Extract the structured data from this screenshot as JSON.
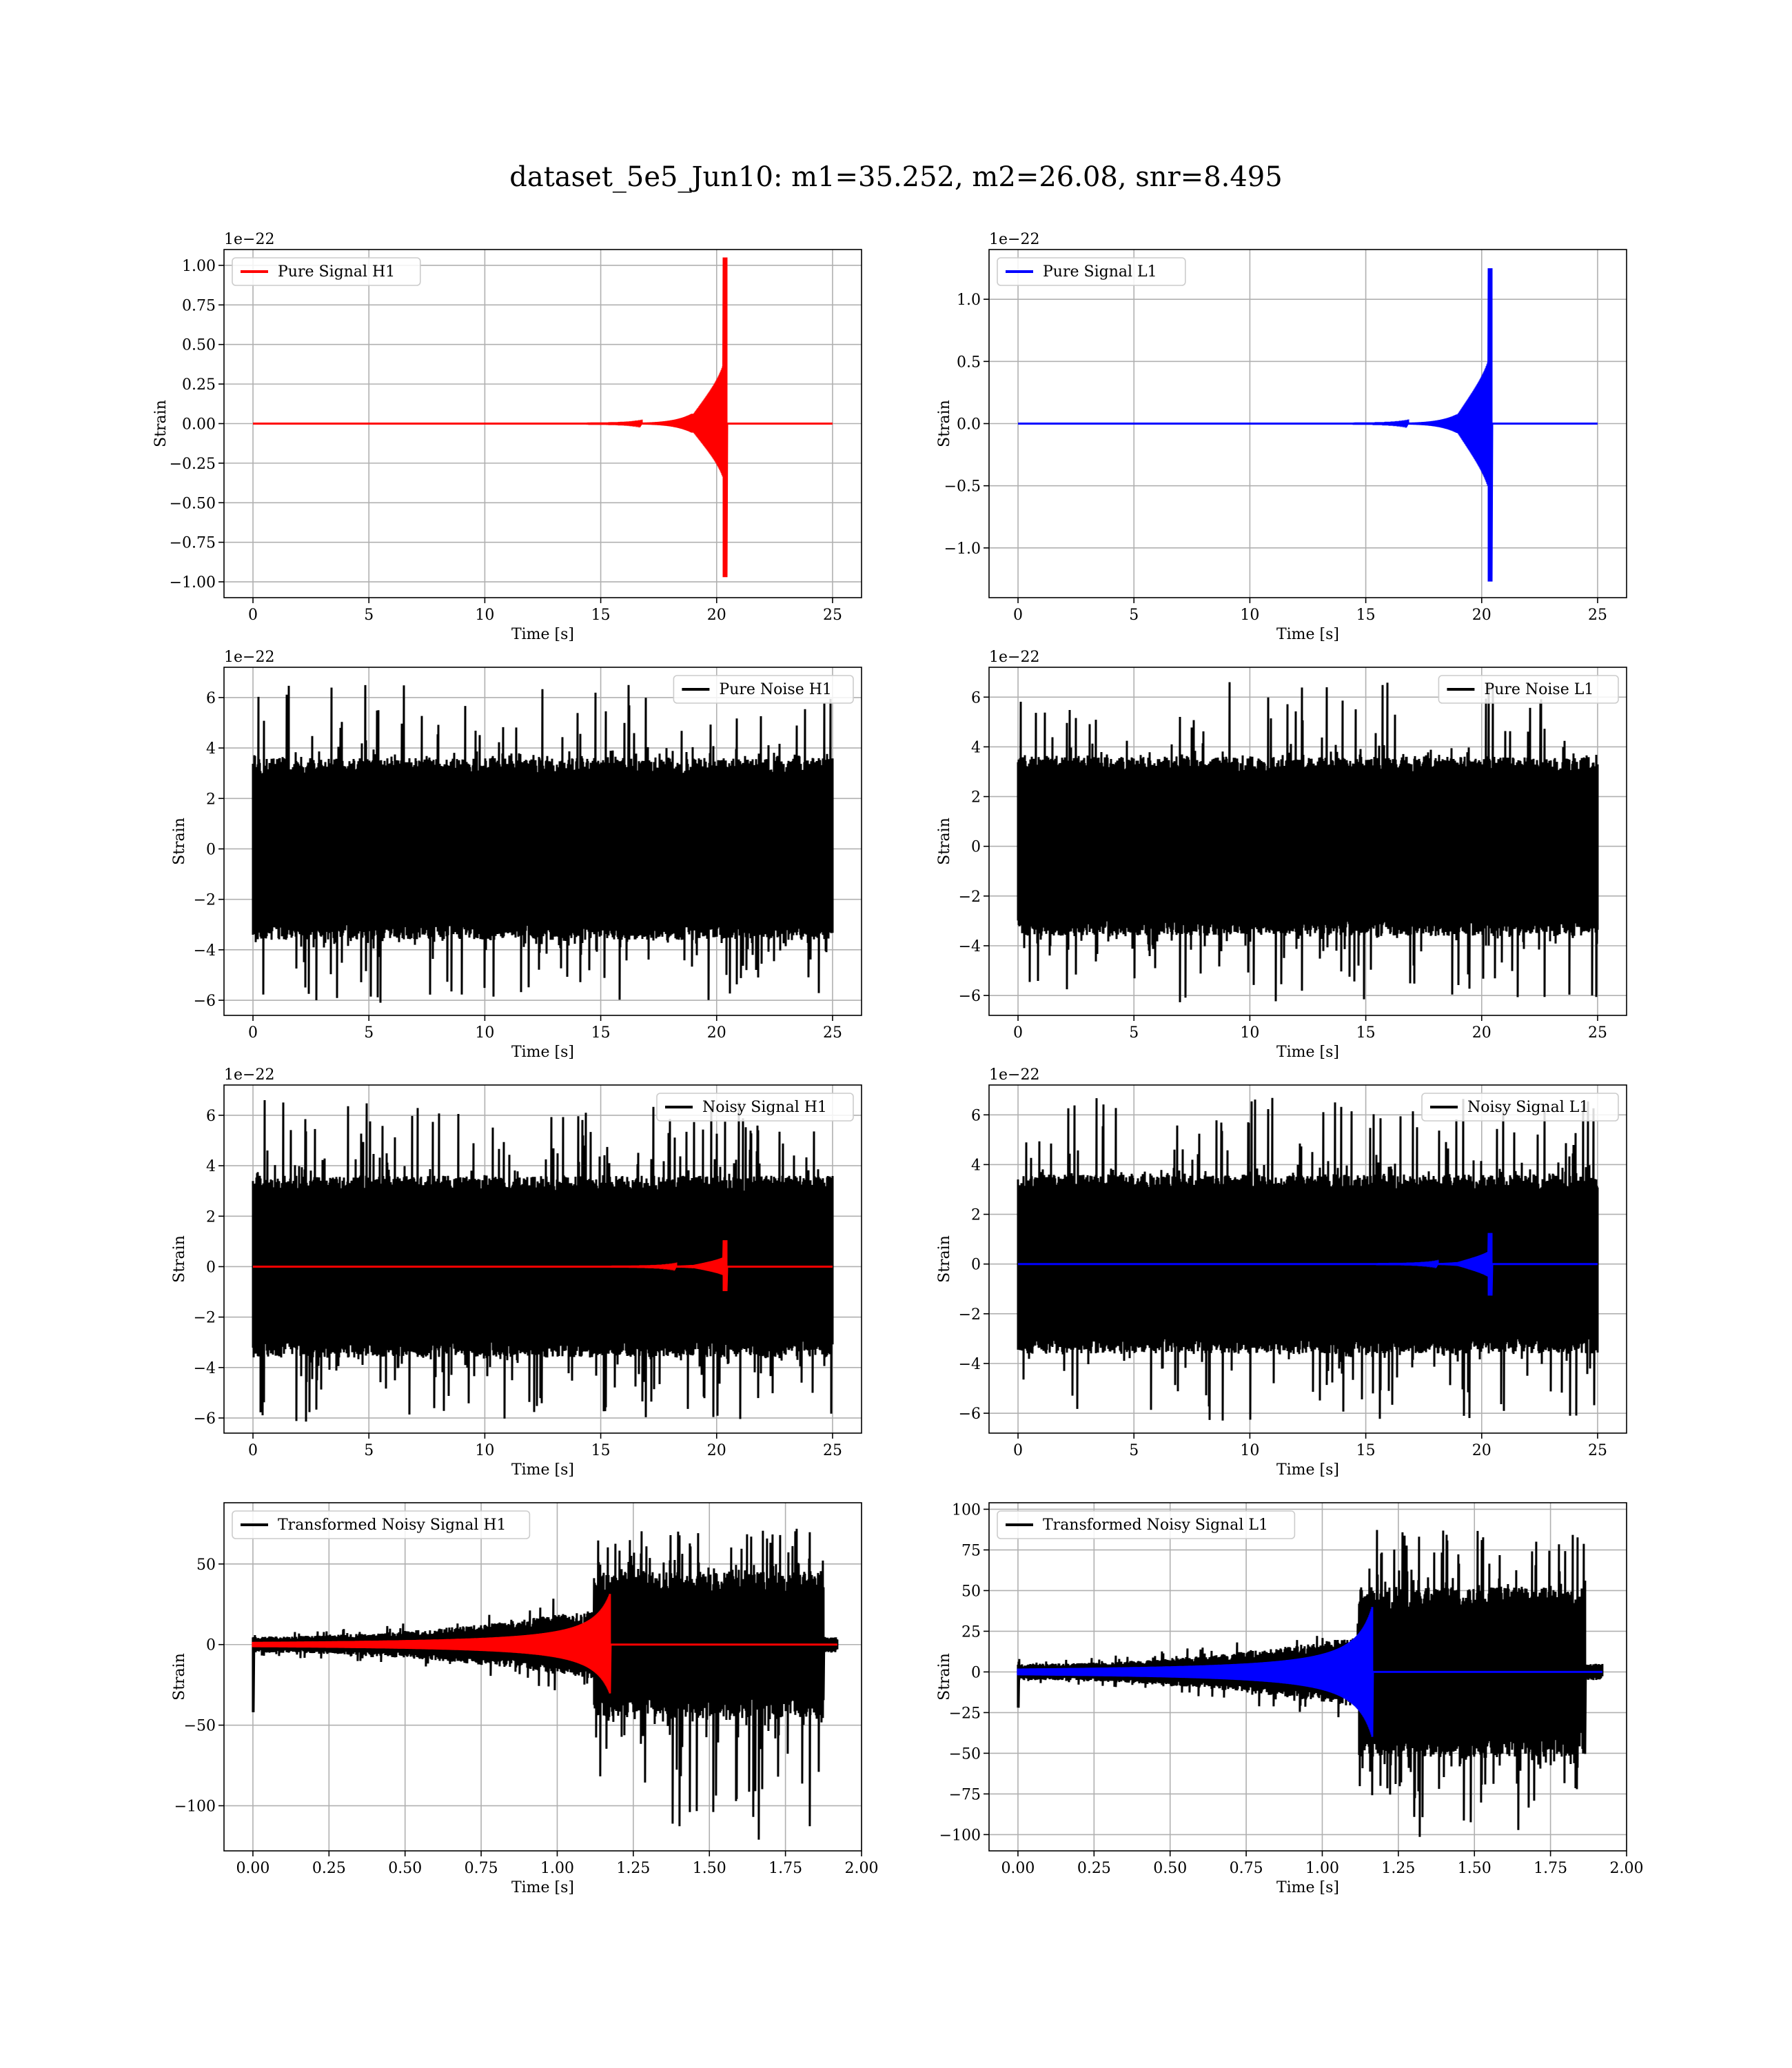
{
  "figure": {
    "title": "dataset_5e5_Jun10: m1=35.252, m2=26.08, snr=8.495"
  },
  "chart_data": [
    {
      "type": "line",
      "legend": "Pure Signal H1",
      "legend_loc": "upper-left",
      "offset_label": "1e−22",
      "xlabel": "Time [s]",
      "ylabel": "Strain",
      "xlim": [
        -1.25,
        26.25
      ],
      "ylim": [
        -1.1,
        1.1
      ],
      "xticks": [
        0,
        5,
        10,
        15,
        20,
        25
      ],
      "yticks": [
        -1.0,
        -0.75,
        -0.5,
        -0.25,
        0.0,
        0.25,
        0.5,
        0.75,
        1.0
      ],
      "ytick_labels": [
        "−1.00",
        "−0.75",
        "−0.50",
        "−0.25",
        "0.00",
        "0.25",
        "0.50",
        "0.75",
        "1.00"
      ],
      "grid": true,
      "series": [
        {
          "name": "Pure Signal H1",
          "color": "#ff0000",
          "kind": "chirp",
          "x_start": 0,
          "x_end": 25,
          "merger": 20.45,
          "peak_pos": 1.05,
          "peak_neg": -0.97,
          "pre_amp": 0.3
        }
      ]
    },
    {
      "type": "line",
      "legend": "Pure Signal L1",
      "legend_loc": "upper-left",
      "offset_label": "1e−22",
      "xlabel": "Time [s]",
      "ylabel": "Strain",
      "xlim": [
        -1.25,
        26.25
      ],
      "ylim": [
        -1.4,
        1.4
      ],
      "xticks": [
        0,
        5,
        10,
        15,
        20,
        25
      ],
      "yticks": [
        -1.0,
        -0.5,
        0.0,
        0.5,
        1.0
      ],
      "ytick_labels": [
        "−1.0",
        "−0.5",
        "0.0",
        "0.5",
        "1.0"
      ],
      "grid": true,
      "series": [
        {
          "name": "Pure Signal L1",
          "color": "#0000ff",
          "kind": "chirp",
          "x_start": 0,
          "x_end": 25,
          "merger": 20.45,
          "peak_pos": 1.25,
          "peak_neg": -1.27,
          "pre_amp": 0.35
        }
      ]
    },
    {
      "type": "line",
      "legend": "Pure Noise H1",
      "legend_loc": "upper-right",
      "offset_label": "1e−22",
      "xlabel": "Time [s]",
      "ylabel": "Strain",
      "xlim": [
        -1.25,
        26.25
      ],
      "ylim": [
        -6.6,
        7.2
      ],
      "xticks": [
        0,
        5,
        10,
        15,
        20,
        25
      ],
      "yticks": [
        -6,
        -4,
        -2,
        0,
        2,
        4,
        6
      ],
      "ytick_labels": [
        "−6",
        "−4",
        "−2",
        "0",
        "2",
        "4",
        "6"
      ],
      "grid": true,
      "series": [
        {
          "name": "Pure Noise H1",
          "color": "#000000",
          "kind": "noise",
          "x_start": 0,
          "x_end": 25,
          "band": 3.6,
          "spike_max": 6.6,
          "spike_min": -6.1
        }
      ]
    },
    {
      "type": "line",
      "legend": "Pure Noise L1",
      "legend_loc": "upper-right",
      "offset_label": "1e−22",
      "xlabel": "Time [s]",
      "ylabel": "Strain",
      "xlim": [
        -1.25,
        26.25
      ],
      "ylim": [
        -6.8,
        7.2
      ],
      "xticks": [
        0,
        5,
        10,
        15,
        20,
        25
      ],
      "yticks": [
        -6,
        -4,
        -2,
        0,
        2,
        4,
        6
      ],
      "ytick_labels": [
        "−6",
        "−4",
        "−2",
        "0",
        "2",
        "4",
        "6"
      ],
      "grid": true,
      "series": [
        {
          "name": "Pure Noise L1",
          "color": "#000000",
          "kind": "noise",
          "x_start": 0,
          "x_end": 25,
          "band": 3.6,
          "spike_max": 6.7,
          "spike_min": -6.3
        }
      ]
    },
    {
      "type": "line",
      "legend": "Noisy Signal H1",
      "legend_loc": "upper-right",
      "offset_label": "1e−22",
      "xlabel": "Time [s]",
      "ylabel": "Strain",
      "xlim": [
        -1.25,
        26.25
      ],
      "ylim": [
        -6.6,
        7.2
      ],
      "xticks": [
        0,
        5,
        10,
        15,
        20,
        25
      ],
      "yticks": [
        -6,
        -4,
        -2,
        0,
        2,
        4,
        6
      ],
      "ytick_labels": [
        "−6",
        "−4",
        "−2",
        "0",
        "2",
        "4",
        "6"
      ],
      "grid": true,
      "series": [
        {
          "name": "Noisy Signal H1",
          "color": "#000000",
          "kind": "noise",
          "x_start": 0,
          "x_end": 25,
          "band": 3.6,
          "spike_max": 6.6,
          "spike_min": -6.2
        },
        {
          "name": "",
          "color": "#ff0000",
          "kind": "chirp",
          "x_start": 0,
          "x_end": 25,
          "merger": 20.45,
          "peak_pos": 1.05,
          "peak_neg": -0.97,
          "pre_amp": 0.3
        }
      ]
    },
    {
      "type": "line",
      "legend": "Noisy Signal L1",
      "legend_loc": "upper-right",
      "offset_label": "1e−22",
      "xlabel": "Time [s]",
      "ylabel": "Strain",
      "xlim": [
        -1.25,
        26.25
      ],
      "ylim": [
        -6.8,
        7.2
      ],
      "xticks": [
        0,
        5,
        10,
        15,
        20,
        25
      ],
      "yticks": [
        -6,
        -4,
        -2,
        0,
        2,
        4,
        6
      ],
      "ytick_labels": [
        "−6",
        "−4",
        "−2",
        "0",
        "2",
        "4",
        "6"
      ],
      "grid": true,
      "series": [
        {
          "name": "Noisy Signal L1",
          "color": "#000000",
          "kind": "noise",
          "x_start": 0,
          "x_end": 25,
          "band": 3.6,
          "spike_max": 6.7,
          "spike_min": -6.3
        },
        {
          "name": "",
          "color": "#0000ff",
          "kind": "chirp",
          "x_start": 0,
          "x_end": 25,
          "merger": 20.45,
          "peak_pos": 1.25,
          "peak_neg": -1.27,
          "pre_amp": 0.35
        }
      ]
    },
    {
      "type": "line",
      "legend": "Transformed Noisy Signal H1",
      "legend_loc": "upper-left",
      "offset_label": "",
      "xlabel": "Time [s]",
      "ylabel": "Strain",
      "xlim": [
        -0.095,
        2.0
      ],
      "ylim": [
        -128,
        88
      ],
      "xticks": [
        0.0,
        0.25,
        0.5,
        0.75,
        1.0,
        1.25,
        1.5,
        1.75,
        2.0
      ],
      "xtick_labels": [
        "0.00",
        "0.25",
        "0.50",
        "0.75",
        "1.00",
        "1.25",
        "1.50",
        "1.75",
        "2.00"
      ],
      "yticks": [
        -100,
        -50,
        0,
        50
      ],
      "ytick_labels": [
        "−100",
        "−50",
        "0",
        "50"
      ],
      "grid": true,
      "series": [
        {
          "name": "Transformed Noisy Signal H1",
          "color": "#000000",
          "kind": "transformed",
          "x_start": 0,
          "x_end": 1.92,
          "jump": 1.12,
          "drop": 1.875,
          "pre_amp_start": 5,
          "pre_amp_end": 22,
          "post_band": 45,
          "spike_max": 72,
          "spike_min": -122,
          "first_dip": -42
        },
        {
          "name": "",
          "color": "#ff0000",
          "kind": "tchirp",
          "x_start": 0,
          "x_end": 1.92,
          "merger": 1.165,
          "peak_pos": 28,
          "peak_neg": -27
        }
      ]
    },
    {
      "type": "line",
      "legend": "Transformed Noisy Signal L1",
      "legend_loc": "upper-left",
      "offset_label": "",
      "xlabel": "Time [s]",
      "ylabel": "Strain",
      "xlim": [
        -0.095,
        2.0
      ],
      "ylim": [
        -110,
        104
      ],
      "xticks": [
        0.0,
        0.25,
        0.5,
        0.75,
        1.0,
        1.25,
        1.5,
        1.75,
        2.0
      ],
      "xtick_labels": [
        "0.00",
        "0.25",
        "0.50",
        "0.75",
        "1.00",
        "1.25",
        "1.50",
        "1.75",
        "2.00"
      ],
      "yticks": [
        -100,
        -75,
        -50,
        -25,
        0,
        25,
        50,
        75,
        100
      ],
      "ytick_labels": [
        "−100",
        "−75",
        "−50",
        "−25",
        "0",
        "25",
        "50",
        "75",
        "100"
      ],
      "grid": true,
      "series": [
        {
          "name": "Transformed Noisy Signal L1",
          "color": "#000000",
          "kind": "transformed",
          "x_start": 0,
          "x_end": 1.92,
          "jump": 1.12,
          "drop": 1.865,
          "pre_amp_start": 5,
          "pre_amp_end": 22,
          "post_band": 52,
          "spike_max": 90,
          "spike_min": -103,
          "first_dip": -22
        },
        {
          "name": "",
          "color": "#0000ff",
          "kind": "tchirp",
          "x_start": 0,
          "x_end": 1.92,
          "merger": 1.155,
          "peak_pos": 35,
          "peak_neg": -35
        }
      ]
    }
  ]
}
